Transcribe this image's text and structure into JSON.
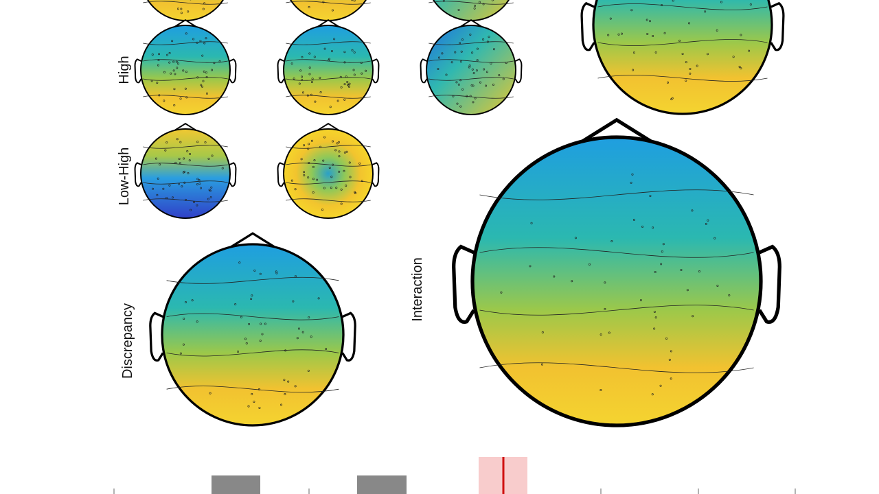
{
  "labels": {
    "high": "High",
    "low_high": "Low-High",
    "discrepancy": "Discrepancy",
    "interaction": "Interaction"
  }
}
